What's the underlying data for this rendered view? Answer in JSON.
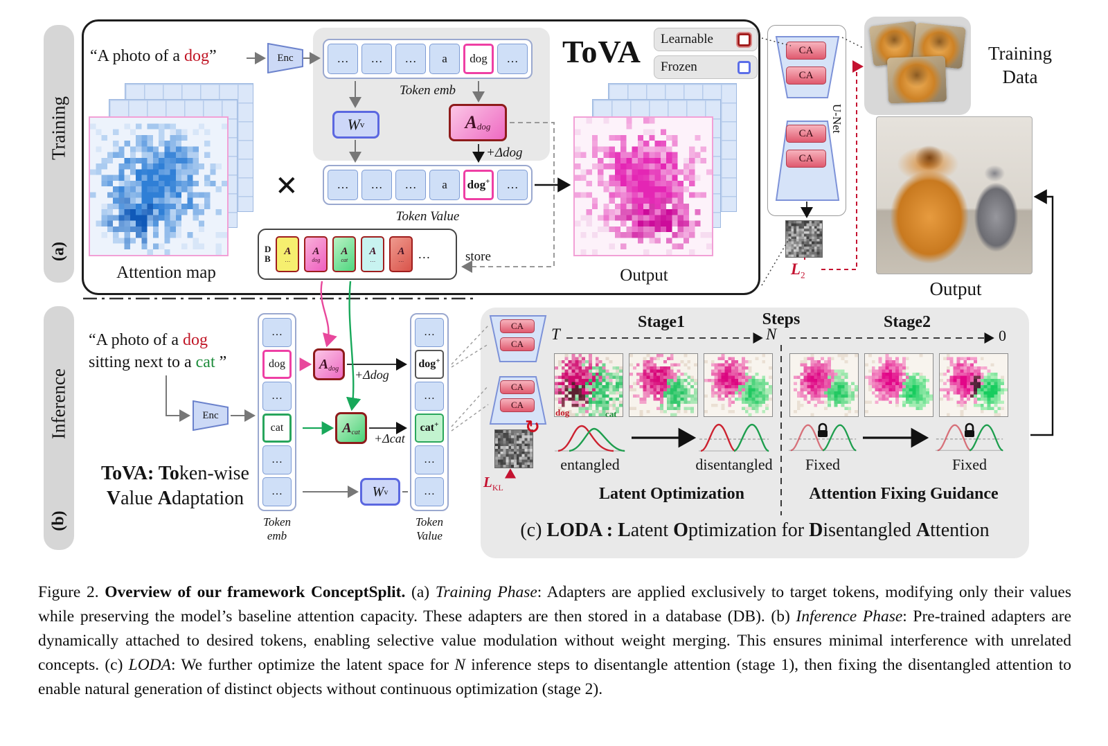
{
  "panel_a": {
    "side_id": "(a)",
    "side_text": "Training",
    "prompt_segments": [
      {
        "t": "“A photo of a "
      },
      {
        "t": "dog",
        "c": "#c01525"
      },
      {
        "t": "”"
      }
    ],
    "enc": "Enc",
    "token_emb_cells": [
      "…",
      "…",
      "…",
      "a",
      "dog",
      "…"
    ],
    "token_emb_caption": "Token emb",
    "wv": {
      "base": "W",
      "sup": "v"
    },
    "adapter_dog": {
      "base": "A",
      "sub": "dog"
    },
    "delta_dog": "+Δdog",
    "token_value_cells": [
      "…",
      "…",
      "…",
      "a",
      "dog",
      "…"
    ],
    "plus": "+",
    "token_value_caption": "Token Value",
    "attention_map_label": "Attention map",
    "multiply": "×",
    "output_label": "Output",
    "db": {
      "d": "D",
      "b": "B",
      "chips": [
        {
          "base": "A",
          "sub": "…"
        },
        {
          "base": "A",
          "sub": "dog"
        },
        {
          "base": "A",
          "sub": "cat"
        },
        {
          "base": "A",
          "sub": "…"
        },
        {
          "base": "A",
          "sub": "…"
        }
      ],
      "more": "…",
      "store": "store"
    },
    "tova_title": "ToVA",
    "legend": {
      "learnable": "Learnable",
      "frozen": "Frozen"
    }
  },
  "unet": {
    "ca": "CA",
    "label": "U-Net",
    "loss": {
      "base": "L",
      "sub": "2"
    }
  },
  "training_data": {
    "line1": "Training",
    "line2": "Data"
  },
  "result_output_label": "Output",
  "panel_b": {
    "side_id": "(b)",
    "side_text": "Inference",
    "prompt_line1_segments": [
      {
        "t": "“A photo of a "
      },
      {
        "t": "dog",
        "c": "#c01525"
      }
    ],
    "prompt_line2_segments": [
      {
        "t": "sitting next to a "
      },
      {
        "t": "cat",
        "c": "#1e8c3c"
      },
      {
        "t": " ”"
      }
    ],
    "enc": "Enc",
    "token_emb_cells": [
      "…",
      "dog",
      "…",
      "cat",
      "…",
      "…"
    ],
    "token_emb_caption1": "Token",
    "token_emb_caption2": "emb",
    "adapter_dog": {
      "base": "A",
      "sub": "dog"
    },
    "adapter_cat": {
      "base": "A",
      "sub": "cat"
    },
    "delta_dog": "+Δdog",
    "delta_cat": "+Δcat",
    "wv": {
      "base": "W",
      "sup": "v"
    },
    "token_value_cells": [
      "…",
      "dog",
      "…",
      "cat",
      "…",
      "…"
    ],
    "plus": "+",
    "token_value_caption1": "Token",
    "token_value_caption2": "Value",
    "tova_line1_segments": [
      {
        "t": "ToVA: To",
        "b": true
      },
      {
        "t": "ken-wise"
      }
    ],
    "tova_line2_segments": [
      {
        "t": "V",
        "b": true
      },
      {
        "t": "alue "
      },
      {
        "t": "A",
        "b": true
      },
      {
        "t": "daptation"
      }
    ]
  },
  "loda": {
    "ca": "CA",
    "loss": {
      "base": "L",
      "sub": "KL"
    },
    "refresh_icon": "↻",
    "t_label": "T",
    "n_label": "N",
    "zero_label": "0",
    "stage1": "Stage1",
    "steps": "Steps",
    "stage2": "Stage2",
    "dog_curve_label": "dog",
    "cat_curve_label": "cat",
    "entangled": "entangled",
    "disentangled": "disentangled",
    "fixed_left": "Fixed",
    "fixed_right": "Fixed",
    "latent_optimization": "Latent Optimization",
    "attention_fixing": "Attention Fixing Guidance",
    "title_segments": [
      {
        "t": "(c) "
      },
      {
        "t": "LODA : L",
        "b": true
      },
      {
        "t": "atent "
      },
      {
        "t": "O",
        "b": true
      },
      {
        "t": "ptimization for "
      },
      {
        "t": "D",
        "b": true
      },
      {
        "t": "isentangled "
      },
      {
        "t": "A",
        "b": true
      },
      {
        "t": "ttention"
      }
    ]
  },
  "caption_segments": [
    {
      "t": "Figure 2. "
    },
    {
      "t": "Overview of our framework ConceptSplit.",
      "b": true
    },
    {
      "t": " (a) "
    },
    {
      "t": "Training Phase",
      "i": true
    },
    {
      "t": ": Adapters are applied exclusively to target tokens, modifying only their values while preserving the model’s baseline attention capacity. These adapters are then stored in a database (DB). (b) "
    },
    {
      "t": "Inference Phase",
      "i": true
    },
    {
      "t": ": Pre-trained adapters are dynamically attached to desired tokens, enabling selective value modulation without weight merging. This ensures minimal interference with unrelated concepts. (c) "
    },
    {
      "t": "LODA",
      "i": true
    },
    {
      "t": ": We further optimize the latent space for "
    },
    {
      "t": "N",
      "i": true
    },
    {
      "t": " inference steps to disentangle attention (stage 1), then fixing the disentangled attention to enable natural generation of distinct objects without continuous optimization (stage 2)."
    }
  ]
}
